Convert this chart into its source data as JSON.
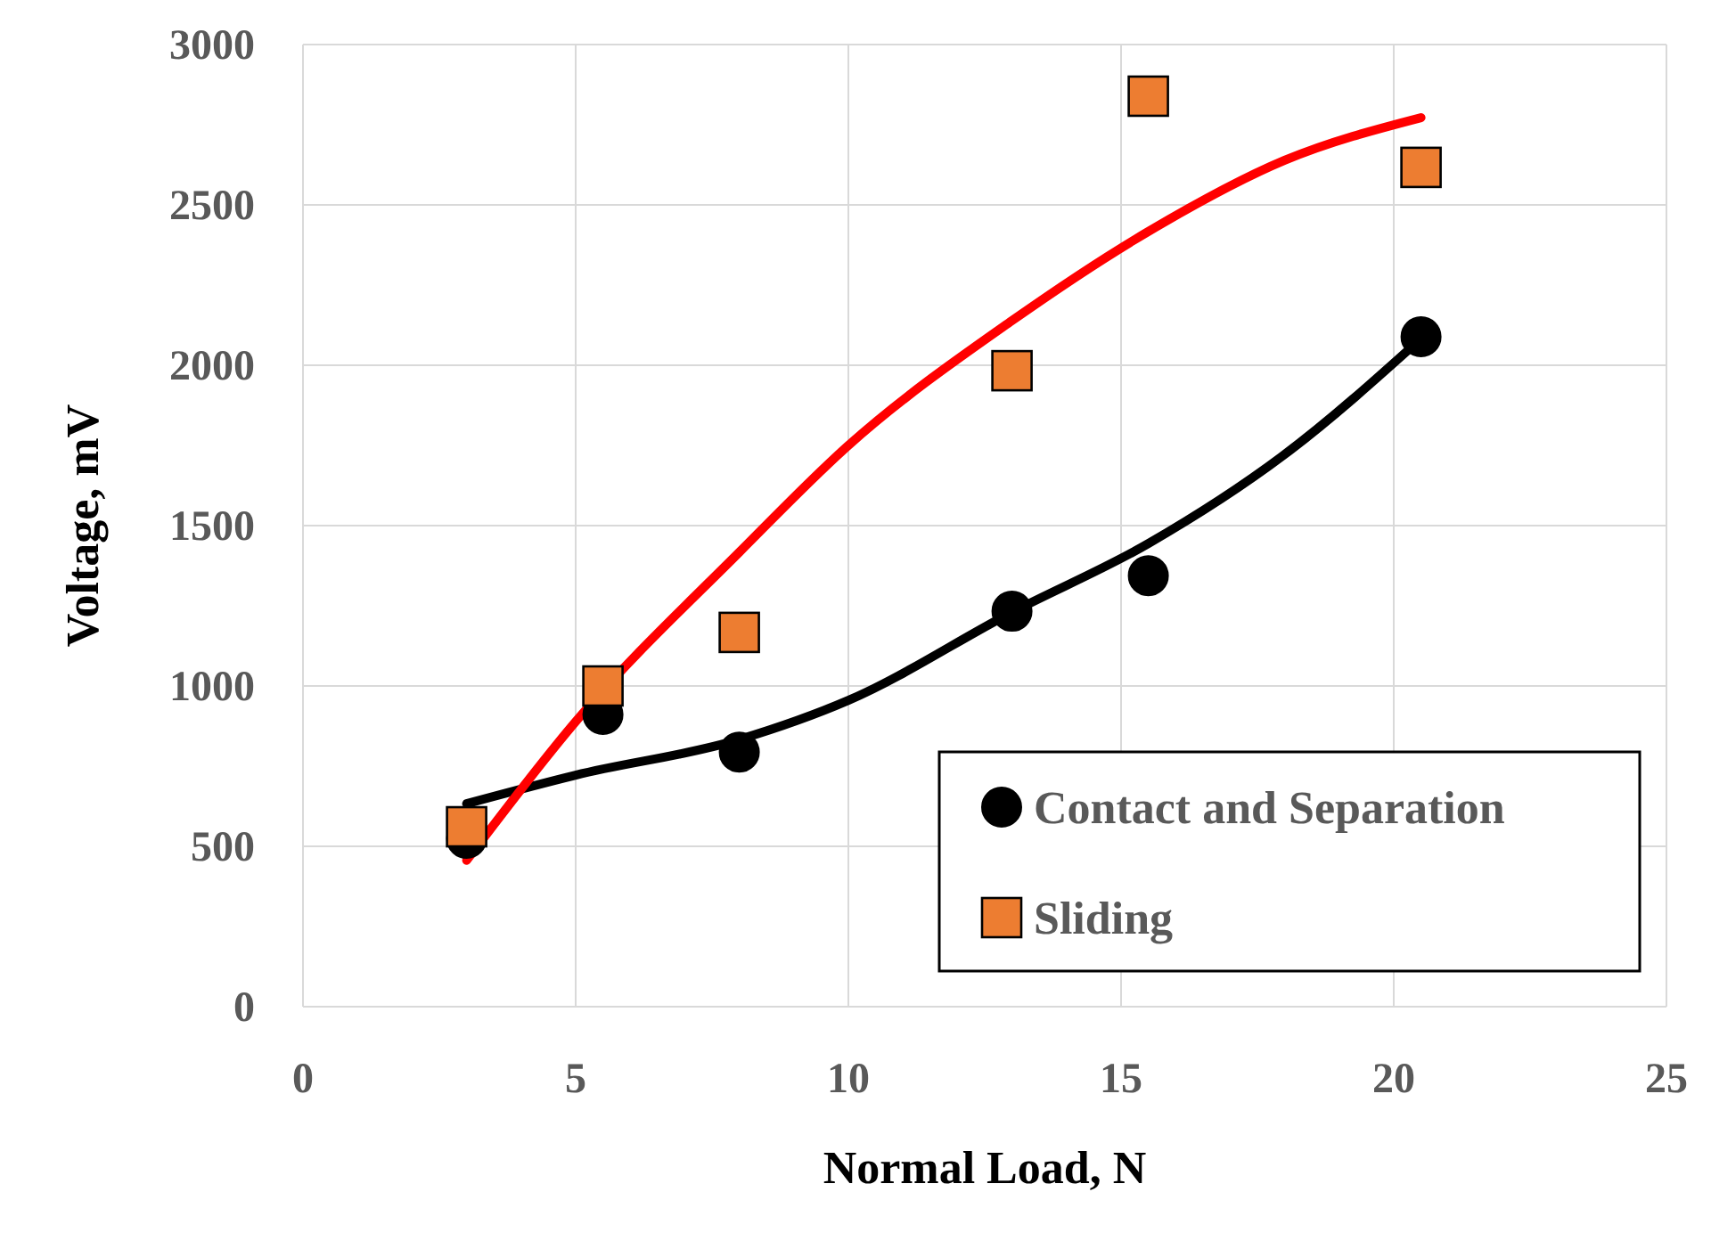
{
  "chart_data": {
    "type": "scatter",
    "xlabel": "Normal Load, N",
    "ylabel": "Voltage, mV",
    "xlim": [
      0,
      25
    ],
    "xticks": [
      0,
      5,
      10,
      15,
      20,
      25
    ],
    "ylim": [
      0,
      3000
    ],
    "yticks": [
      0,
      500,
      1000,
      1500,
      2000,
      2500,
      3000
    ],
    "grid": true,
    "legend": "bottom right",
    "series": [
      {
        "name": "Contact and Separation",
        "marker": "circle",
        "color": "#000000",
        "x": [
          3,
          5.5,
          8,
          13,
          15.5,
          20.5
        ],
        "values": [
          525,
          911,
          794,
          1233,
          1344,
          2089
        ]
      },
      {
        "name": "Sliding",
        "marker": "square",
        "color": "#ed7d31",
        "x": [
          3,
          5.5,
          8,
          13,
          15.5,
          20.5
        ],
        "values": [
          561,
          1000,
          1167,
          1983,
          2839,
          2617
        ]
      },
      {
        "type": "line",
        "color": "#000000",
        "x": [
          3,
          5,
          8,
          10,
          13,
          15.5,
          18,
          20.5
        ],
        "values": [
          633,
          722,
          833,
          955,
          1230,
          1444,
          1722,
          2083
        ]
      },
      {
        "type": "line",
        "color": "#ff0000",
        "x": [
          3,
          5,
          8,
          10,
          13,
          15.5,
          18,
          20.5
        ],
        "values": [
          456,
          889,
          1417,
          1750,
          2139,
          2417,
          2639,
          2772
        ]
      }
    ]
  }
}
